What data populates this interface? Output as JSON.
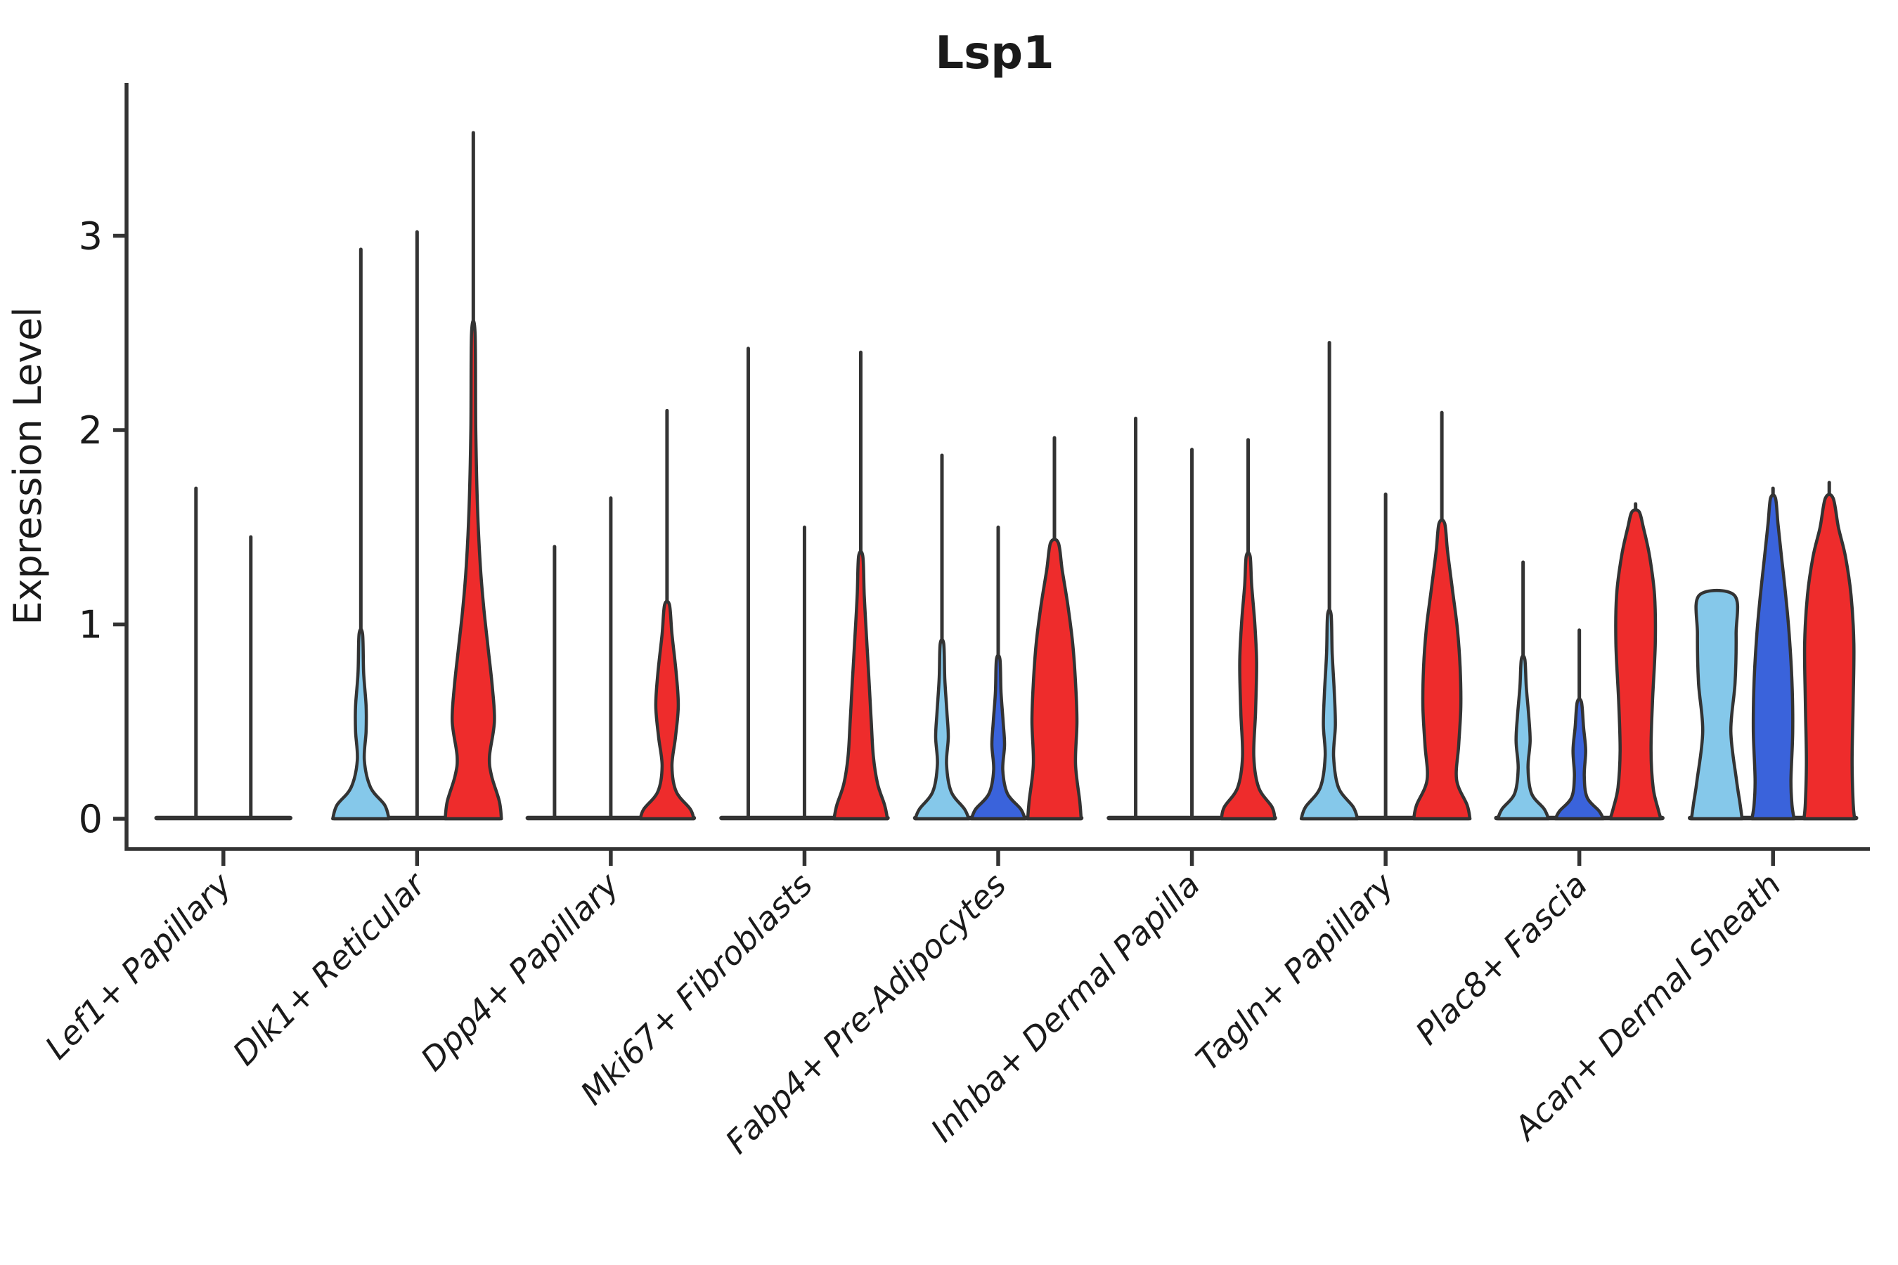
{
  "chart_data": {
    "type": "violin",
    "title": "Lsp1",
    "ylabel": "Expression Level",
    "xlabel": "",
    "y_ticks": [
      0,
      1,
      2,
      3
    ],
    "ylim": [
      -0.16,
      3.79
    ],
    "grid": false,
    "legend": "none",
    "colors": {
      "lightblue": "#85C8EA",
      "darkblue": "#3A63DB",
      "red": "#EE2C2C",
      "outline": "#333333"
    },
    "categories": [
      {
        "label": "Lef1+ Papillary",
        "violins": [
          {
            "color": "lightblue",
            "max": 1.7,
            "type": "line"
          },
          {
            "color": "darkblue",
            "max": 1.45,
            "type": "line"
          }
        ]
      },
      {
        "label": "Dlk1+ Reticular",
        "violins": [
          {
            "color": "lightblue",
            "max": 2.93,
            "type": "body",
            "profile": [
              [
                0,
                40
              ],
              [
                0.07,
                34
              ],
              [
                0.16,
                14
              ],
              [
                0.3,
                5
              ],
              [
                0.45,
                7.5
              ],
              [
                0.58,
                7.5
              ],
              [
                0.75,
                4
              ],
              [
                0.95,
                2.5
              ]
            ]
          },
          {
            "color": "darkblue",
            "max": 3.02,
            "type": "line"
          },
          {
            "color": "red",
            "max": 3.53,
            "type": "body",
            "profile": [
              [
                0,
                40
              ],
              [
                0.09,
                37
              ],
              [
                0.22,
                26
              ],
              [
                0.32,
                23
              ],
              [
                0.5,
                30
              ],
              [
                0.68,
                27
              ],
              [
                0.88,
                21
              ],
              [
                1.08,
                15
              ],
              [
                1.3,
                10
              ],
              [
                1.6,
                6
              ],
              [
                2.0,
                3.5
              ],
              [
                2.5,
                2.5
              ]
            ]
          }
        ]
      },
      {
        "label": "Dpp4+ Papillary",
        "violins": [
          {
            "color": "lightblue",
            "max": 1.4,
            "type": "line"
          },
          {
            "color": "darkblue",
            "max": 1.65,
            "type": "line"
          },
          {
            "color": "red",
            "max": 2.1,
            "type": "body",
            "profile": [
              [
                0,
                38
              ],
              [
                0.05,
                33
              ],
              [
                0.14,
                13
              ],
              [
                0.27,
                7
              ],
              [
                0.42,
                12
              ],
              [
                0.58,
                16
              ],
              [
                0.75,
                13
              ],
              [
                0.95,
                7
              ],
              [
                1.1,
                3.5
              ]
            ]
          }
        ]
      },
      {
        "label": "Mki67+ Fibroblasts",
        "violins": [
          {
            "color": "lightblue",
            "max": 2.42,
            "type": "line"
          },
          {
            "color": "darkblue",
            "max": 1.5,
            "type": "line"
          },
          {
            "color": "red",
            "max": 2.4,
            "type": "body",
            "profile": [
              [
                0,
                38
              ],
              [
                0.07,
                34
              ],
              [
                0.18,
                24
              ],
              [
                0.32,
                18
              ],
              [
                0.5,
                15
              ],
              [
                0.7,
                12
              ],
              [
                0.95,
                8
              ],
              [
                1.15,
                5
              ],
              [
                1.35,
                3
              ]
            ]
          }
        ]
      },
      {
        "label": "Fabp4+ Pre-Adipocytes",
        "violins": [
          {
            "color": "lightblue",
            "max": 1.87,
            "type": "body",
            "profile": [
              [
                0,
                38
              ],
              [
                0.05,
                32
              ],
              [
                0.14,
                13
              ],
              [
                0.28,
                6.5
              ],
              [
                0.42,
                9
              ],
              [
                0.55,
                7
              ],
              [
                0.72,
                4
              ],
              [
                0.9,
                2.5
              ]
            ]
          },
          {
            "color": "darkblue",
            "max": 1.5,
            "type": "body",
            "profile": [
              [
                0,
                38
              ],
              [
                0.05,
                32
              ],
              [
                0.13,
                13
              ],
              [
                0.25,
                6.5
              ],
              [
                0.38,
                9
              ],
              [
                0.5,
                7
              ],
              [
                0.65,
                4
              ],
              [
                0.82,
                2.5
              ]
            ]
          },
          {
            "color": "red",
            "max": 1.96,
            "type": "body",
            "profile": [
              [
                0,
                38
              ],
              [
                0.09,
                36
              ],
              [
                0.28,
                30
              ],
              [
                0.5,
                32
              ],
              [
                0.7,
                30
              ],
              [
                0.9,
                26
              ],
              [
                1.1,
                19
              ],
              [
                1.28,
                11
              ],
              [
                1.42,
                5.5
              ]
            ]
          }
        ]
      },
      {
        "label": "Inhba+ Dermal Papilla",
        "violins": [
          {
            "color": "lightblue",
            "max": 2.06,
            "type": "line"
          },
          {
            "color": "darkblue",
            "max": 1.9,
            "type": "line"
          },
          {
            "color": "red",
            "max": 1.95,
            "type": "body",
            "profile": [
              [
                0,
                38
              ],
              [
                0.06,
                34
              ],
              [
                0.16,
                15
              ],
              [
                0.32,
                8
              ],
              [
                0.55,
                10.5
              ],
              [
                0.8,
                12
              ],
              [
                1.0,
                9.5
              ],
              [
                1.2,
                5
              ],
              [
                1.35,
                2.8
              ]
            ]
          }
        ]
      },
      {
        "label": "Tagln+ Papillary",
        "violins": [
          {
            "color": "lightblue",
            "max": 2.45,
            "type": "body",
            "profile": [
              [
                0,
                40
              ],
              [
                0.06,
                34
              ],
              [
                0.16,
                13
              ],
              [
                0.32,
                6
              ],
              [
                0.48,
                8.5
              ],
              [
                0.65,
                7
              ],
              [
                0.85,
                4
              ],
              [
                1.05,
                2.5
              ]
            ]
          },
          {
            "color": "darkblue",
            "max": 1.67,
            "type": "line"
          },
          {
            "color": "red",
            "max": 2.09,
            "type": "body",
            "profile": [
              [
                0,
                40
              ],
              [
                0.07,
                36
              ],
              [
                0.2,
                21
              ],
              [
                0.38,
                24
              ],
              [
                0.58,
                27
              ],
              [
                0.78,
                26
              ],
              [
                0.98,
                22
              ],
              [
                1.18,
                15
              ],
              [
                1.38,
                8
              ],
              [
                1.52,
                4
              ]
            ]
          }
        ]
      },
      {
        "label": "Plac8+ Fascia",
        "violins": [
          {
            "color": "lightblue",
            "max": 1.32,
            "type": "body",
            "profile": [
              [
                0,
                36
              ],
              [
                0.05,
                30
              ],
              [
                0.13,
                12
              ],
              [
                0.26,
                7
              ],
              [
                0.4,
                10
              ],
              [
                0.53,
                8
              ],
              [
                0.68,
                4.5
              ],
              [
                0.82,
                2.5
              ]
            ]
          },
          {
            "color": "darkblue",
            "max": 0.97,
            "type": "body",
            "profile": [
              [
                0,
                34
              ],
              [
                0.04,
                28
              ],
              [
                0.11,
                11
              ],
              [
                0.22,
                7
              ],
              [
                0.35,
                9
              ],
              [
                0.47,
                6
              ],
              [
                0.6,
                3
              ]
            ]
          },
          {
            "color": "red",
            "max": 1.62,
            "type": "body",
            "profile": [
              [
                0,
                36
              ],
              [
                0.05,
                32
              ],
              [
                0.16,
                25
              ],
              [
                0.35,
                22
              ],
              [
                0.6,
                24
              ],
              [
                0.9,
                28
              ],
              [
                1.15,
                27
              ],
              [
                1.35,
                20
              ],
              [
                1.5,
                11
              ],
              [
                1.58,
                5
              ]
            ]
          }
        ]
      },
      {
        "label": "Acan+ Dermal Sheath",
        "violins": [
          {
            "color": "lightblue",
            "max": 1.15,
            "type": "body",
            "flat_top": true,
            "profile": [
              [
                0,
                36
              ],
              [
                0.08,
                33
              ],
              [
                0.2,
                28
              ],
              [
                0.45,
                20
              ],
              [
                0.7,
                26
              ],
              [
                0.95,
                27.5
              ],
              [
                1.15,
                25
              ]
            ]
          },
          {
            "color": "darkblue",
            "max": 1.7,
            "type": "body",
            "profile": [
              [
                0,
                30
              ],
              [
                0.07,
                27
              ],
              [
                0.2,
                25.5
              ],
              [
                0.45,
                28
              ],
              [
                0.7,
                27
              ],
              [
                0.95,
                23
              ],
              [
                1.15,
                18
              ],
              [
                1.35,
                12
              ],
              [
                1.52,
                7
              ],
              [
                1.65,
                3.5
              ]
            ]
          },
          {
            "color": "red",
            "max": 1.73,
            "type": "body",
            "profile": [
              [
                0,
                36
              ],
              [
                0.08,
                34
              ],
              [
                0.3,
                32.5
              ],
              [
                0.6,
                34
              ],
              [
                0.9,
                35
              ],
              [
                1.15,
                31
              ],
              [
                1.35,
                23
              ],
              [
                1.5,
                13
              ],
              [
                1.65,
                5.5
              ]
            ]
          }
        ]
      }
    ]
  }
}
